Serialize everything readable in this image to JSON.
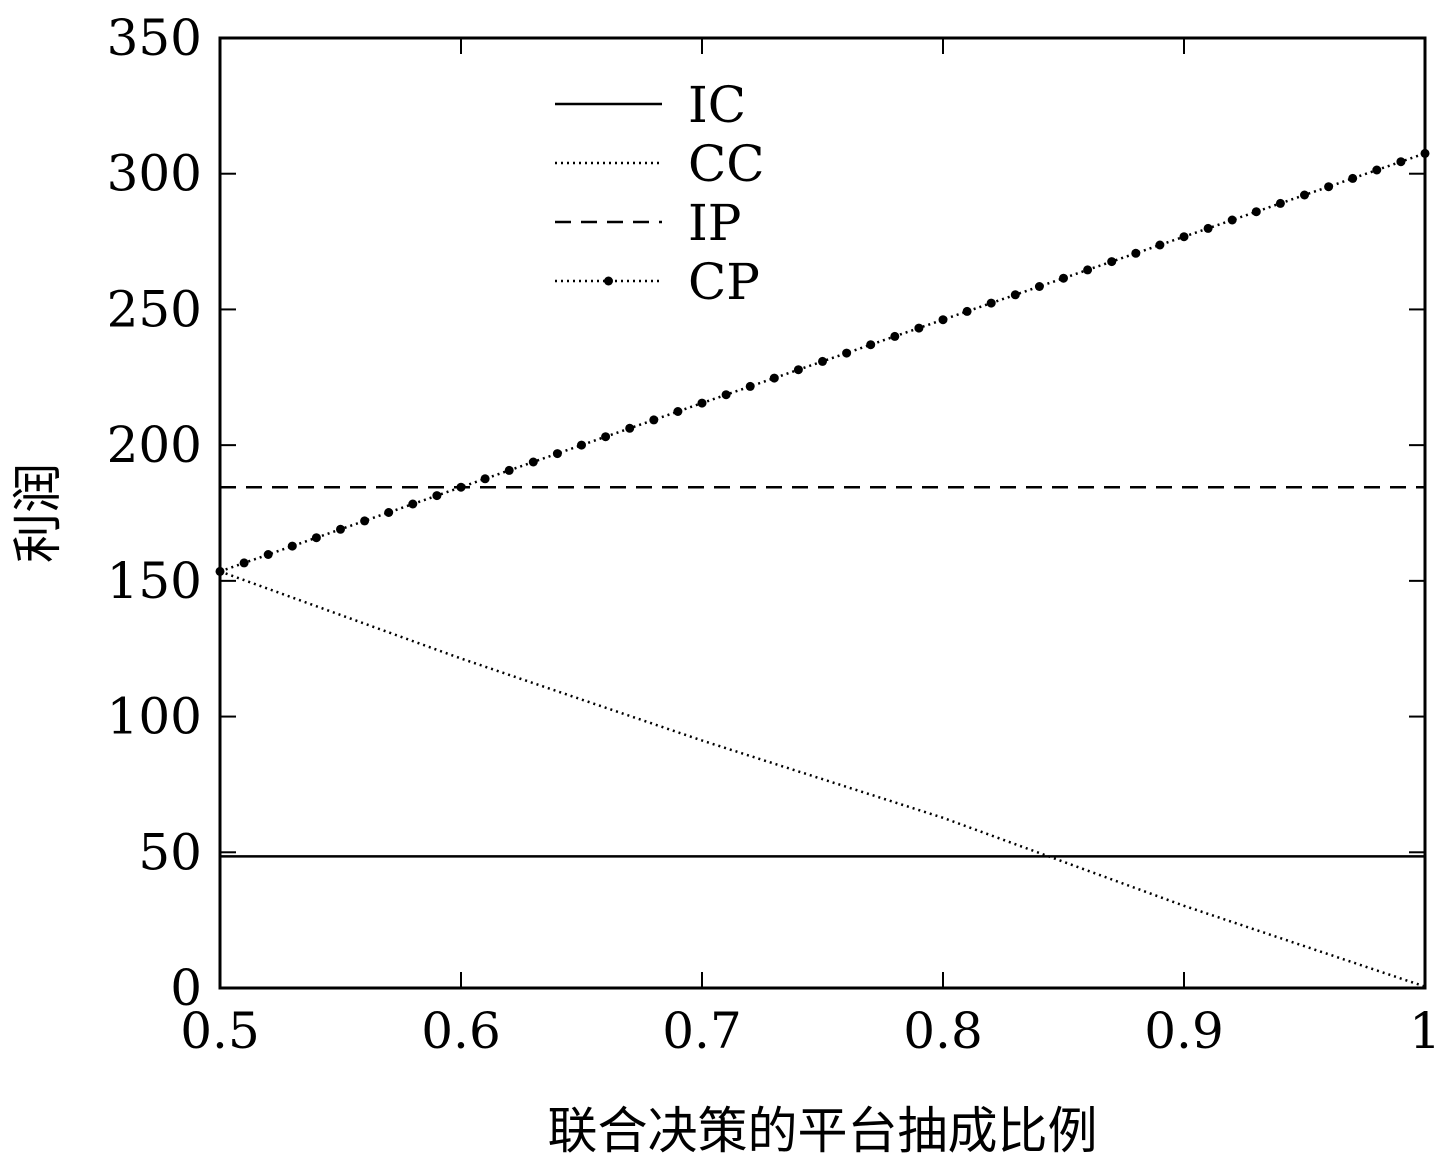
{
  "chart_data": {
    "type": "line",
    "title": "",
    "xlabel": "联合决策的平台抽成比例",
    "ylabel": "利润",
    "xlim": [
      0.5,
      1.0
    ],
    "ylim": [
      0,
      350
    ],
    "x_ticks": [
      "0.5",
      "0.6",
      "0.7",
      "0.8",
      "0.9",
      "1"
    ],
    "y_ticks": [
      "0",
      "50",
      "100",
      "150",
      "200",
      "250",
      "300",
      "350"
    ],
    "grid": false,
    "legend_position": "top-center",
    "series": [
      {
        "name": "IC",
        "style": "solid",
        "points": [
          [
            0.5,
            48.5
          ],
          [
            1.0,
            48.5
          ]
        ]
      },
      {
        "name": "CC",
        "style": "dotted",
        "points": [
          [
            0.5,
            153.5
          ],
          [
            0.6,
            121.4
          ],
          [
            0.7,
            91.2
          ],
          [
            0.8,
            62.7
          ],
          [
            0.9,
            30.3
          ],
          [
            1.0,
            0.5
          ]
        ]
      },
      {
        "name": "IP",
        "style": "dashed",
        "points": [
          [
            0.5,
            184.5
          ],
          [
            1.0,
            184.5
          ]
        ]
      },
      {
        "name": "CP",
        "style": "dotted-markers",
        "points": [
          [
            0.5,
            153.5
          ],
          [
            0.6,
            184.5
          ],
          [
            0.7,
            215.5
          ],
          [
            0.8,
            246.2
          ],
          [
            0.9,
            276.8
          ],
          [
            1.0,
            307.5
          ]
        ]
      }
    ]
  }
}
